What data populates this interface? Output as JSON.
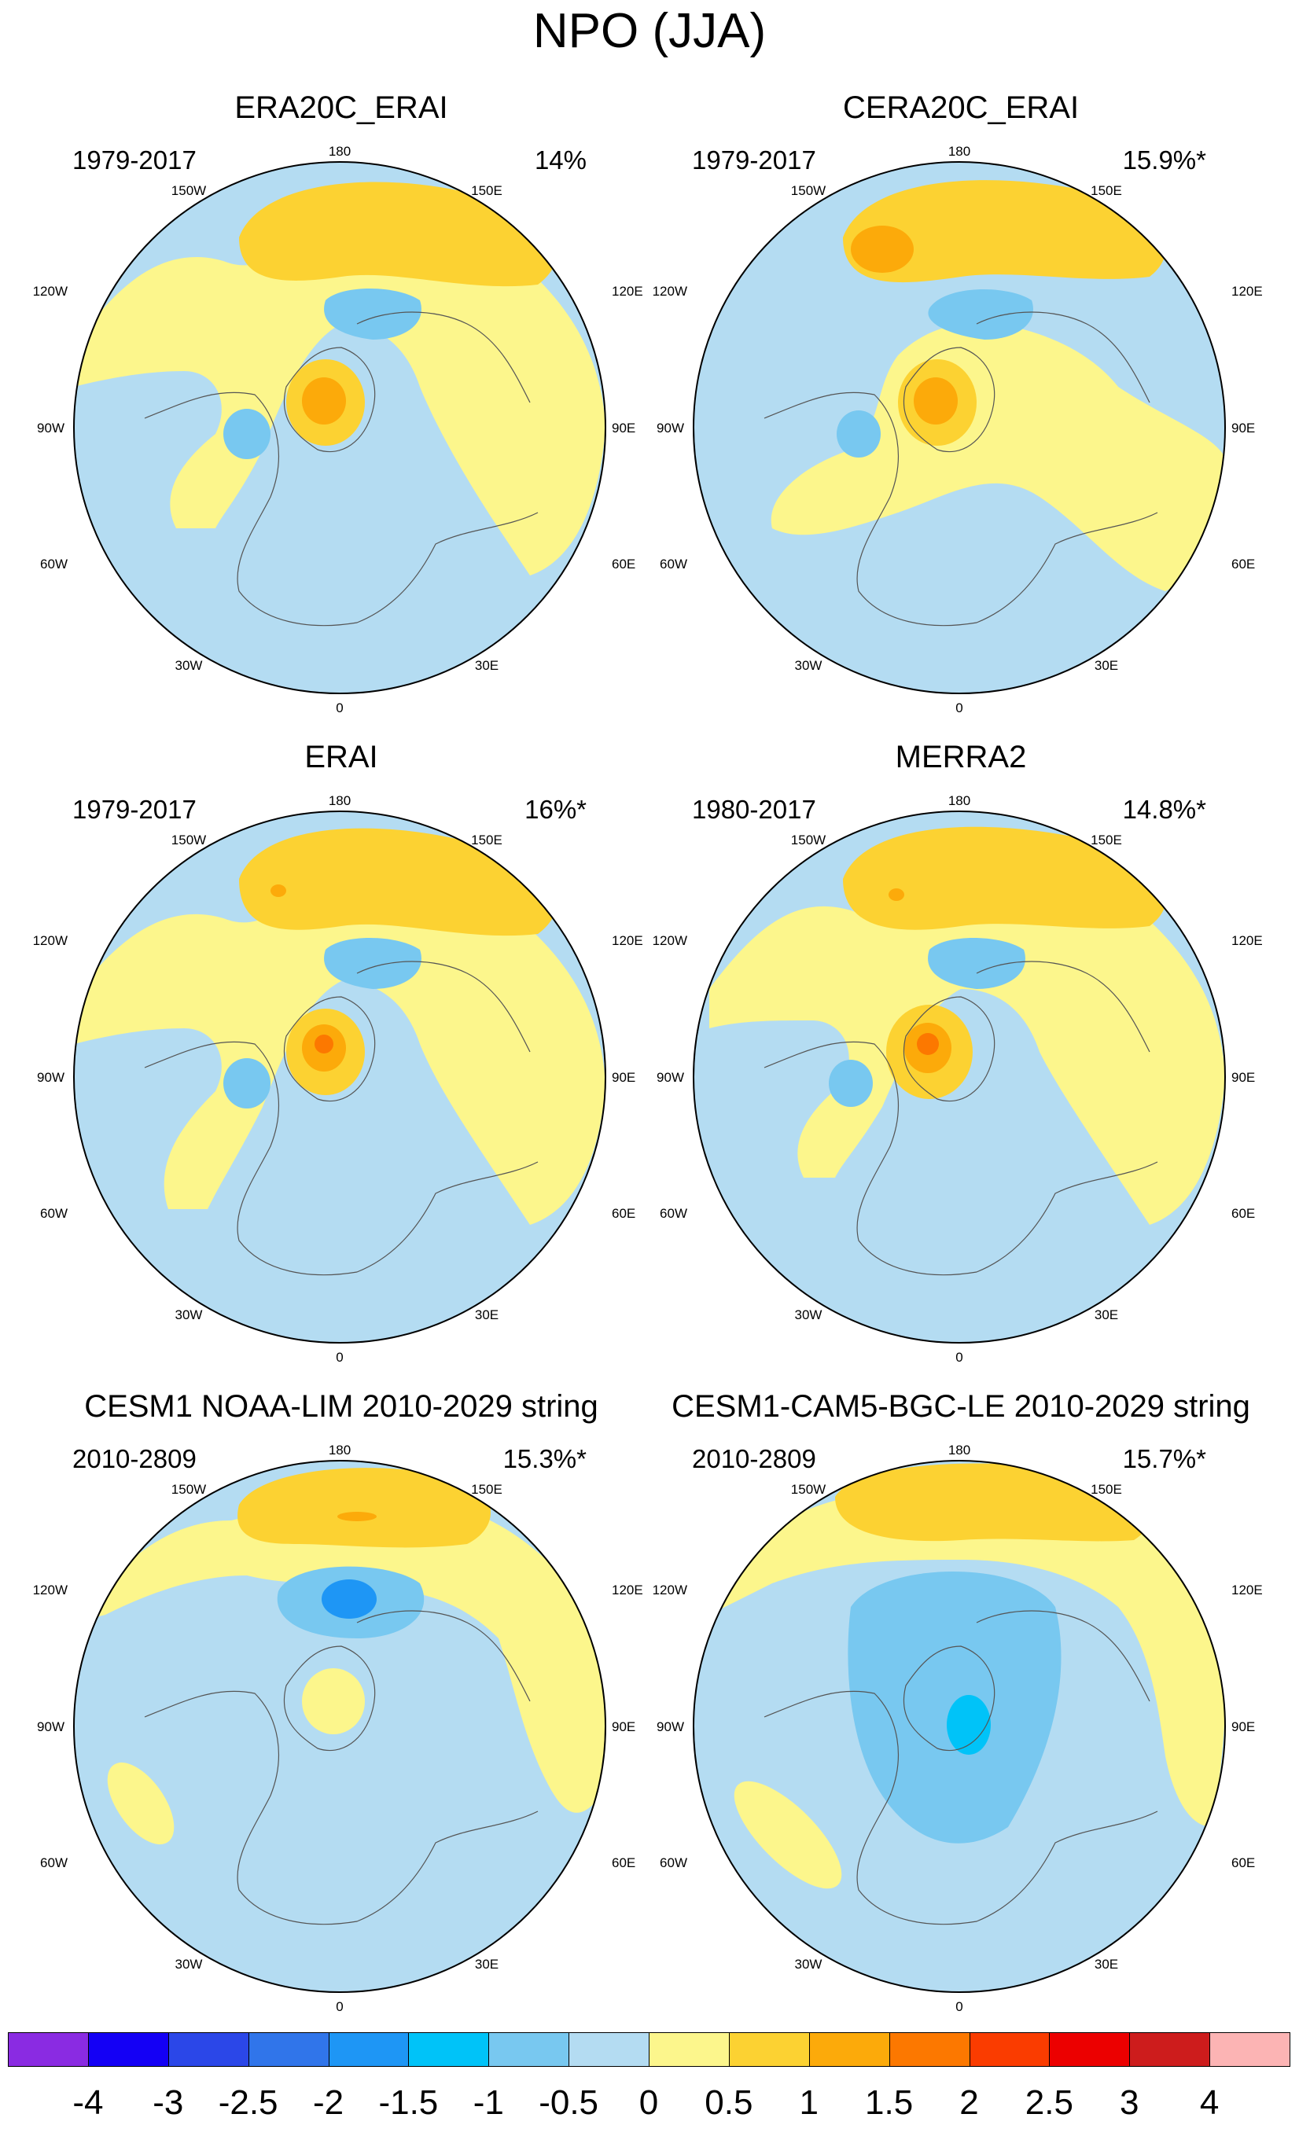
{
  "title": "NPO (JJA)",
  "panels": [
    {
      "title": "ERA20C_ERAI",
      "period": "1979-2017",
      "variance": "14%"
    },
    {
      "title": "CERA20C_ERAI",
      "period": "1979-2017",
      "variance": "15.9%*"
    },
    {
      "title": "ERAI",
      "period": "1979-2017",
      "variance": "16%*"
    },
    {
      "title": "MERRA2",
      "period": "1980-2017",
      "variance": "14.8%*"
    },
    {
      "title": "CESM1 NOAA-LIM 2010-2029 string",
      "period": "2010-2809",
      "variance": "15.3%*"
    },
    {
      "title": "CESM1-CAM5-BGC-LE 2010-2029 string",
      "period": "2010-2809",
      "variance": "15.7%*"
    }
  ],
  "longitude_labels": [
    "180",
    "150E",
    "120E",
    "90E",
    "60E",
    "30E",
    "0",
    "30W",
    "60W",
    "90W",
    "120W",
    "150W"
  ],
  "colorbar": {
    "colors": [
      "#8a2be2",
      "#1400f5",
      "#2b47e8",
      "#3075ea",
      "#1e96f5",
      "#00c3f8",
      "#78c8f0",
      "#b4dcf2",
      "#fcf68c",
      "#fcd232",
      "#fcaa0a",
      "#fc7800",
      "#fa3c00",
      "#ec0000",
      "#cd1c1c",
      "#fcb4b4"
    ],
    "labels": [
      "-4",
      "-3",
      "-2.5",
      "-2",
      "-1.5",
      "-1",
      "-0.5",
      "0",
      "0.5",
      "1",
      "1.5",
      "2",
      "2.5",
      "3",
      "4"
    ]
  }
}
